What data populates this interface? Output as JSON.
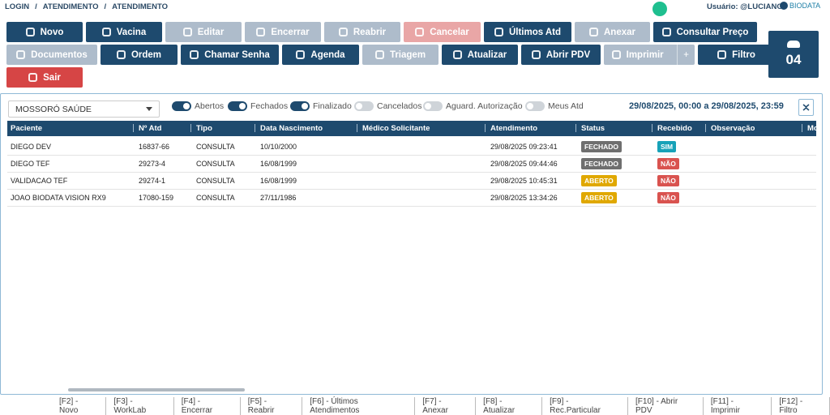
{
  "breadcrumb": {
    "items": [
      "LOGIN",
      "ATENDIMENTO",
      "ATENDIMENTO"
    ],
    "separator": "/"
  },
  "user": "Usuário: @LUCIANO",
  "logo": "BIODATA",
  "toolbar": {
    "rows": [
      [
        {
          "label": "Novo",
          "state": "primary"
        },
        {
          "label": "Vacina",
          "state": "primary"
        },
        {
          "label": "Editar",
          "state": "disabled"
        },
        {
          "label": "Encerrar",
          "state": "disabled"
        },
        {
          "label": "Reabrir",
          "state": "disabled"
        },
        {
          "label": "Cancelar",
          "state": "danger-disabled"
        },
        {
          "label": "Últimos Atd",
          "state": "primary"
        },
        {
          "label": "Anexar",
          "state": "disabled"
        },
        {
          "label": "Consultar Preço",
          "state": "primary"
        }
      ],
      [
        {
          "label": "Documentos",
          "state": "disabled"
        },
        {
          "label": "Ordem",
          "state": "primary"
        },
        {
          "label": "Chamar Senha",
          "state": "primary"
        },
        {
          "label": "Agenda",
          "state": "primary"
        },
        {
          "label": "Triagem",
          "state": "disabled"
        },
        {
          "label": "Atualizar",
          "state": "primary"
        },
        {
          "label": "Abrir PDV",
          "state": "primary"
        },
        {
          "label": "Imprimir",
          "state": "disabled",
          "extra": "+"
        },
        {
          "label": "Filtro",
          "state": "primary"
        }
      ]
    ],
    "exit": "Sair"
  },
  "counter": "04",
  "filters": {
    "unit": "MOSSORÓ SAÚDE",
    "toggles": [
      {
        "label": "Abertos",
        "on": true
      },
      {
        "label": "Fechados",
        "on": true
      },
      {
        "label": "Finalizado",
        "on": true
      },
      {
        "label": "Cancelados",
        "on": false
      },
      {
        "label": "Aguard. Autorização",
        "on": false
      },
      {
        "label": "Meus Atd",
        "on": false
      }
    ],
    "date_range": "29/08/2025, 00:00 a 29/08/2025, 23:59"
  },
  "table": {
    "columns": [
      "Paciente",
      "Nº Atd",
      "Tipo",
      "Data Nascimento",
      "Médico Solicitante",
      "Atendimento",
      "Status",
      "Recebido",
      "Observação",
      "Mo"
    ],
    "rows": [
      [
        "DIEGO DEV",
        "16837-66",
        "CONSULTA",
        "10/10/2000",
        "",
        "29/08/2025 09:23:41",
        {
          "text": "FECHADO",
          "color": "#6f6f6f"
        },
        {
          "text": "SIM",
          "color": "#17a2b8"
        },
        ""
      ],
      [
        "DIEGO TEF",
        "29273-4",
        "CONSULTA",
        "16/08/1999",
        "",
        "29/08/2025 09:44:46",
        {
          "text": "FECHADO",
          "color": "#6f6f6f"
        },
        {
          "text": "NÃO",
          "color": "#d9534f"
        },
        ""
      ],
      [
        "VALIDACAO TEF",
        "29274-1",
        "CONSULTA",
        "16/08/1999",
        "",
        "29/08/2025 10:45:31",
        {
          "text": "ABERTO",
          "color": "#e0a800"
        },
        {
          "text": "NÃO",
          "color": "#d9534f"
        },
        ""
      ],
      [
        "JOAO BIODATA VISION RX9",
        "17080-159",
        "CONSULTA",
        "27/11/1986",
        "",
        "29/08/2025 13:34:26",
        {
          "text": "ABERTO",
          "color": "#e0a800"
        },
        {
          "text": "NÃO",
          "color": "#d9534f"
        },
        ""
      ]
    ]
  },
  "shortcuts": [
    "[F2] - Novo",
    "[F3] - WorkLab",
    "[F4] - Encerrar",
    "[F5] - Reabrir",
    "[F6] - Últimos Atendimentos",
    "[F7] - Anexar",
    "[F8] - Atualizar",
    "[F9] - Rec.Particular",
    "[F10] - Abrir PDV",
    "[F11] - Imprimir",
    "[F12] - Filtro"
  ]
}
